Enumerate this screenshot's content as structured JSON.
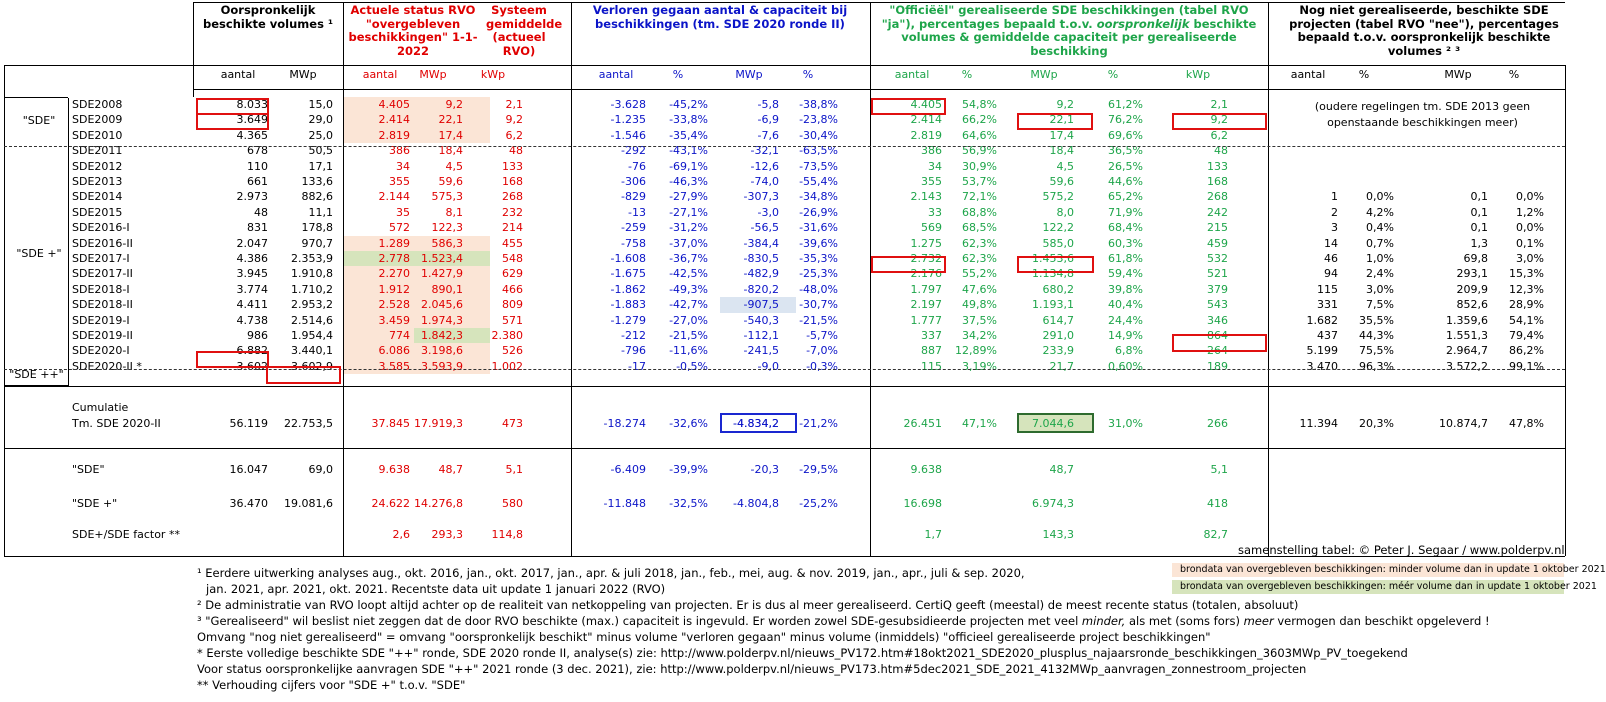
{
  "headers": {
    "col1": "Oorspronkelijk beschikte volumes ¹",
    "col2": "Actuele status RVO \"overgebleven beschikkingen\" 1-1-2022",
    "col3": "Systeem gemiddelde (actueel RVO)",
    "col4": "Verloren gegaan aantal & capaciteit bij beschikkingen (tm. SDE 2020 ronde II)",
    "col5_pre": "\"Officiëël\" gerealiseerde SDE beschikkingen (tabel RVO \"ja\"), percentages bepaald t.o.v.",
    "col5_em": "oorspronkelijk",
    "col5_post": "beschikte volumes & gemiddelde capaciteit per gerealiseerde beschikking",
    "col6": "Nog niet gerealiseerde, beschikte SDE projecten (tabel RVO \"nee\"), percentages bepaald t.o.v. oorspronkelijk beschikte volumes ² ³"
  },
  "units": [
    "aantal",
    "MWp",
    "aantal",
    "MWp",
    "kWp",
    "aantal",
    "%",
    "MWp",
    "%",
    "aantal",
    "%",
    "MWp",
    "%",
    "kWp",
    "aantal",
    "%",
    "MWp",
    "%"
  ],
  "groups": {
    "sde": "\"SDE\"",
    "sdeplus": "\"SDE +\"",
    "sdeplusplus": "\"SDE ++\""
  },
  "rows": [
    [
      "SDE2008",
      "8.033",
      "15,0",
      "4.405",
      "9,2",
      "2,1",
      "-3.628",
      "-45,2%",
      "-5,8",
      "-38,8%",
      "4.405",
      "54,8%",
      "9,2",
      "61,2%",
      "2,1",
      "",
      "",
      "",
      ""
    ],
    [
      "SDE2009",
      "3.649",
      "29,0",
      "2.414",
      "22,1",
      "9,2",
      "-1.235",
      "-33,8%",
      "-6,9",
      "-23,8%",
      "2.414",
      "66,2%",
      "22,1",
      "76,2%",
      "9,2",
      "",
      "",
      "",
      ""
    ],
    [
      "SDE2010",
      "4.365",
      "25,0",
      "2.819",
      "17,4",
      "6,2",
      "-1.546",
      "-35,4%",
      "-7,6",
      "-30,4%",
      "2.819",
      "64,6%",
      "17,4",
      "69,6%",
      "6,2",
      "",
      "",
      "",
      ""
    ],
    [
      "SDE2011",
      "678",
      "50,5",
      "386",
      "18,4",
      "48",
      "-292",
      "-43,1%",
      "-32,1",
      "-63,5%",
      "386",
      "56,9%",
      "18,4",
      "36,5%",
      "48",
      "",
      "",
      "",
      ""
    ],
    [
      "SDE2012",
      "110",
      "17,1",
      "34",
      "4,5",
      "133",
      "-76",
      "-69,1%",
      "-12,6",
      "-73,5%",
      "34",
      "30,9%",
      "4,5",
      "26,5%",
      "133",
      "",
      "",
      "",
      ""
    ],
    [
      "SDE2013",
      "661",
      "133,6",
      "355",
      "59,6",
      "168",
      "-306",
      "-46,3%",
      "-74,0",
      "-55,4%",
      "355",
      "53,7%",
      "59,6",
      "44,6%",
      "168",
      "",
      "",
      "",
      ""
    ],
    [
      "SDE2014",
      "2.973",
      "882,6",
      "2.144",
      "575,3",
      "268",
      "-829",
      "-27,9%",
      "-307,3",
      "-34,8%",
      "2.143",
      "72,1%",
      "575,2",
      "65,2%",
      "268",
      "1",
      "0,0%",
      "0,1",
      "0,0%"
    ],
    [
      "SDE2015",
      "48",
      "11,1",
      "35",
      "8,1",
      "232",
      "-13",
      "-27,1%",
      "-3,0",
      "-26,9%",
      "33",
      "68,8%",
      "8,0",
      "71,9%",
      "242",
      "2",
      "4,2%",
      "0,1",
      "1,2%"
    ],
    [
      "SDE2016-I",
      "831",
      "178,8",
      "572",
      "122,3",
      "214",
      "-259",
      "-31,2%",
      "-56,5",
      "-31,6%",
      "569",
      "68,5%",
      "122,2",
      "68,4%",
      "215",
      "3",
      "0,4%",
      "0,1",
      "0,0%"
    ],
    [
      "SDE2016-II",
      "2.047",
      "970,7",
      "1.289",
      "586,3",
      "455",
      "-758",
      "-37,0%",
      "-384,4",
      "-39,6%",
      "1.275",
      "62,3%",
      "585,0",
      "60,3%",
      "459",
      "14",
      "0,7%",
      "1,3",
      "0,1%"
    ],
    [
      "SDE2017-I",
      "4.386",
      "2.353,9",
      "2.778",
      "1.523,4",
      "548",
      "-1.608",
      "-36,7%",
      "-830,5",
      "-35,3%",
      "2.732",
      "62,3%",
      "1.453,6",
      "61,8%",
      "532",
      "46",
      "1,0%",
      "69,8",
      "3,0%"
    ],
    [
      "SDE2017-II",
      "3.945",
      "1.910,8",
      "2.270",
      "1.427,9",
      "629",
      "-1.675",
      "-42,5%",
      "-482,9",
      "-25,3%",
      "2.176",
      "55,2%",
      "1.134,8",
      "59,4%",
      "521",
      "94",
      "2,4%",
      "293,1",
      "15,3%"
    ],
    [
      "SDE2018-I",
      "3.774",
      "1.710,2",
      "1.912",
      "890,1",
      "466",
      "-1.862",
      "-49,3%",
      "-820,2",
      "-48,0%",
      "1.797",
      "47,6%",
      "680,2",
      "39,8%",
      "379",
      "115",
      "3,0%",
      "209,9",
      "12,3%"
    ],
    [
      "SDE2018-II",
      "4.411",
      "2.953,2",
      "2.528",
      "2.045,6",
      "809",
      "-1.883",
      "-42,7%",
      "-907,5",
      "-30,7%",
      "2.197",
      "49,8%",
      "1.193,1",
      "40,4%",
      "543",
      "331",
      "7,5%",
      "852,6",
      "28,9%"
    ],
    [
      "SDE2019-I",
      "4.738",
      "2.514,6",
      "3.459",
      "1.974,3",
      "571",
      "-1.279",
      "-27,0%",
      "-540,3",
      "-21,5%",
      "1.777",
      "37,5%",
      "614,7",
      "24,4%",
      "346",
      "1.682",
      "35,5%",
      "1.359,6",
      "54,1%"
    ],
    [
      "SDE2019-II",
      "986",
      "1.954,4",
      "774",
      "1.842,3",
      "2.380",
      "-212",
      "-21,5%",
      "-112,1",
      "-5,7%",
      "337",
      "34,2%",
      "291,0",
      "14,9%",
      "864",
      "437",
      "44,3%",
      "1.551,3",
      "79,4%"
    ],
    [
      "SDE2020-I",
      "6.882",
      "3.440,1",
      "6.086",
      "3.198,6",
      "526",
      "-796",
      "-11,6%",
      "-241,5",
      "-7,0%",
      "887",
      "12,89%",
      "233,9",
      "6,8%",
      "264",
      "5.199",
      "75,5%",
      "2.964,7",
      "86,2%"
    ],
    [
      "SDE2020-II *",
      "3.602",
      "3.602,9",
      "3.585",
      "3.593,9",
      "1.002",
      "-17",
      "-0,5%",
      "-9,0",
      "-0,3%",
      "115",
      "3,19%",
      "21,7",
      "0,60%",
      "189",
      "3.470",
      "96,3%",
      "3.572,2",
      "99,1%"
    ]
  ],
  "old_note": "(oudere regelingen tm. SDE 2013 geen openstaande beschikkingen meer)",
  "cumulatie": {
    "label1": "Cumulatie",
    "label2": "Tm. SDE 2020-II",
    "values": [
      "56.119",
      "22.753,5",
      "37.845",
      "17.919,3",
      "473",
      "-18.274",
      "-32,6%",
      "-4.834,2",
      "-21,2%",
      "26.451",
      "47,1%",
      "7.044,6",
      "31,0%",
      "266",
      "11.394",
      "20,3%",
      "10.874,7",
      "47,8%"
    ]
  },
  "summary": [
    {
      "label": "\"SDE\"",
      "values": [
        "16.047",
        "69,0",
        "9.638",
        "48,7",
        "5,1",
        "-6.409",
        "-39,9%",
        "-20,3",
        "-29,5%",
        "9.638",
        "",
        "48,7",
        "",
        "5,1",
        "",
        "",
        "",
        ""
      ]
    },
    {
      "label": "\"SDE +\"",
      "values": [
        "36.470",
        "19.081,6",
        "24.622",
        "14.276,8",
        "580",
        "-11.848",
        "-32,5%",
        "-4.804,8",
        "-25,2%",
        "16.698",
        "",
        "6.974,3",
        "",
        "418",
        "",
        "",
        "",
        ""
      ]
    },
    {
      "label": "SDE+/SDE factor **",
      "values": [
        "",
        "",
        "2,6",
        "293,3",
        "114,8",
        "",
        "",
        "",
        "",
        "1,7",
        "",
        "143,3",
        "",
        "82,7",
        "",
        "",
        "",
        ""
      ]
    }
  ],
  "credit": "samenstelling tabel: © Peter J. Segaar / www.polderpv.nl",
  "legend": {
    "orange": "brondata van overgebleven beschikkingen: minder volume dan in update 1 oktober 2021",
    "green": "brondata van overgebleven beschikkingen: méér volume dan in update 1 oktober 2021"
  },
  "footnotes": {
    "f1a": "¹ Eerdere uitwerking analyses aug., okt. 2016, jan., okt.  2017, jan., apr. & juli 2018, jan., feb., mei, aug. & nov. 2019, jan., apr., juli & sep. 2020,",
    "f1b": "jan. 2021, apr. 2021, okt. 2021. Recentste data uit update 1 januari 2022 (RVO)",
    "f2": "² De administratie van RVO loopt altijd achter op de realiteit van netkoppeling van projecten. Er is dus al meer gerealiseerd. CertiQ geeft (meestal) de meest recente status (totalen, absoluut)",
    "f3_pre": "³ \"Gerealiseerd\" wil beslist niet zeggen dat de door RVO beschikte (max.) capaciteit is ingevuld. Er worden zowel SDE-gesubsidieerde projecten met veel",
    "f3_em1": "minder,",
    "f3_mid": " als met (soms fors)",
    "f3_em2": "meer",
    "f3_post": " vermogen dan beschikt opgeleverd !",
    "f4": "Omvang \"nog niet gerealiseerd\" = omvang \"oorspronkelijk beschikt\" minus volume \"verloren gegaan\" minus volume (inmiddels) \"officieel gerealiseerde project beschikkingen\"",
    "f5": "* Eerste volledige beschikte SDE \"++\" ronde, SDE 2020 ronde II, analyse(s) zie: http://www.polderpv.nl/nieuws_PV172.htm#18okt2021_SDE2020_plusplus_najaarsronde_beschikkingen_3603MWp_PV_toegekend",
    "f6": "Voor status oorspronkelijke aanvragen SDE \"++\" 2021 ronde (3 dec. 2021), zie: http://www.polderpv.nl/nieuws_PV173.htm#5dec2021_SDE_2021_4132MWp_aanvragen_zonnestroom_projecten",
    "f7": "** Verhouding cijfers voor \"SDE +\" t.o.v. \"SDE\""
  },
  "colors": {
    "red": "#e00000",
    "blue": "#0b14c8",
    "green": "#1ea54a",
    "orange_bg": "#fbe5d6",
    "green_bg": "#d6e4bc",
    "blue_bg": "#dbe5f1"
  }
}
